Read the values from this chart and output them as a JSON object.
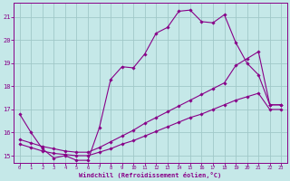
{
  "xlabel": "Windchill (Refroidissement éolien,°C)",
  "bg_color": "#c5e8e8",
  "grid_color": "#a0c8c8",
  "line_color": "#880088",
  "xlim": [
    -0.5,
    23.5
  ],
  "ylim": [
    14.7,
    21.6
  ],
  "xticks": [
    0,
    1,
    2,
    3,
    4,
    5,
    6,
    7,
    8,
    9,
    10,
    11,
    12,
    13,
    14,
    15,
    16,
    17,
    18,
    19,
    20,
    21,
    22,
    23
  ],
  "yticks": [
    15,
    16,
    17,
    18,
    19,
    20,
    21
  ],
  "line1_x": [
    0,
    1,
    2,
    3,
    4,
    5,
    6,
    7,
    8,
    9,
    10,
    11,
    12,
    13,
    14,
    15,
    16,
    17,
    18,
    19,
    20,
    21,
    22,
    23
  ],
  "line1_y": [
    16.8,
    16.0,
    15.3,
    14.9,
    15.0,
    14.8,
    14.8,
    16.2,
    18.3,
    18.85,
    18.8,
    19.4,
    20.3,
    20.55,
    21.25,
    21.3,
    20.8,
    20.75,
    21.1,
    19.9,
    19.0,
    18.5,
    17.2,
    17.2
  ],
  "line2_x": [
    0,
    1,
    2,
    3,
    4,
    5,
    6,
    7,
    8,
    9,
    10,
    11,
    12,
    13,
    14,
    15,
    16,
    17,
    18,
    19,
    20,
    21,
    22,
    23
  ],
  "line2_y": [
    15.5,
    15.35,
    15.2,
    15.1,
    15.05,
    15.0,
    15.0,
    15.15,
    15.3,
    15.5,
    15.65,
    15.85,
    16.05,
    16.25,
    16.45,
    16.65,
    16.8,
    17.0,
    17.2,
    17.4,
    17.55,
    17.7,
    17.0,
    17.0
  ],
  "line3_x": [
    0,
    1,
    2,
    3,
    4,
    5,
    6,
    7,
    8,
    9,
    10,
    11,
    12,
    13,
    14,
    15,
    16,
    17,
    18,
    19,
    20,
    21,
    22,
    23
  ],
  "line3_y": [
    15.7,
    15.55,
    15.4,
    15.3,
    15.2,
    15.15,
    15.15,
    15.35,
    15.6,
    15.85,
    16.1,
    16.4,
    16.65,
    16.9,
    17.15,
    17.4,
    17.65,
    17.9,
    18.15,
    18.9,
    19.2,
    19.5,
    17.2,
    17.2
  ]
}
